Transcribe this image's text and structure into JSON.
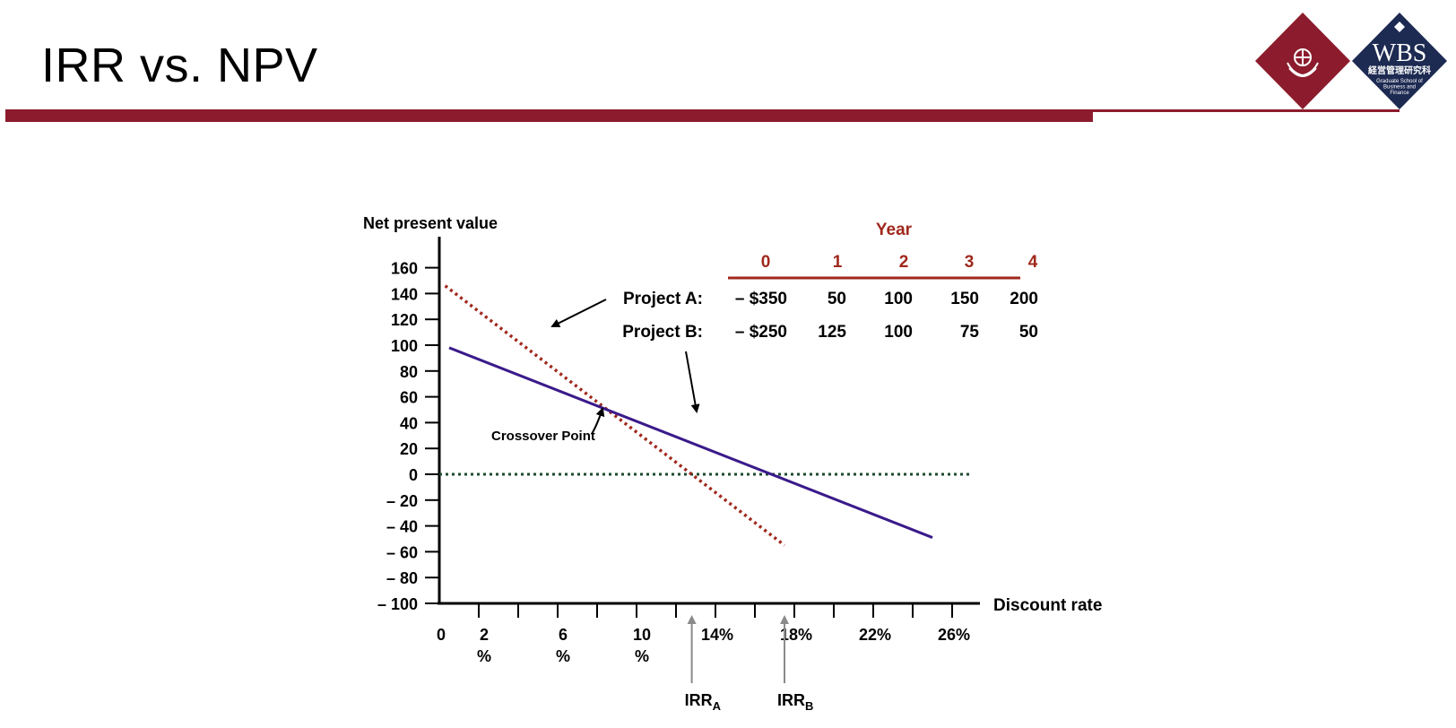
{
  "slide": {
    "title": "IRR vs. NPV"
  },
  "logo": {
    "brand": "WBS",
    "kanji": "経営管理研究科",
    "subtitle": [
      "Graduate School of",
      "Business and",
      "Finance"
    ]
  },
  "colors": {
    "brand": "#8c1c2d",
    "project_a": "#a0281c",
    "project_b": "#3a1a8a",
    "zero_line": "#1d4a2e",
    "arrow_gray": "#8a8a8a",
    "year_red": "#a0281c"
  },
  "chart_data": {
    "type": "line",
    "title": "",
    "ylabel": "Net present value",
    "xlabel": "Discount rate",
    "ylim": [
      -100,
      160
    ],
    "xlim": [
      0,
      27
    ],
    "y_ticks": [
      {
        "v": 160,
        "label": "160"
      },
      {
        "v": 140,
        "label": "140"
      },
      {
        "v": 120,
        "label": "120"
      },
      {
        "v": 100,
        "label": "100"
      },
      {
        "v": 80,
        "label": "80"
      },
      {
        "v": 60,
        "label": "60"
      },
      {
        "v": 40,
        "label": "40"
      },
      {
        "v": 20,
        "label": "20"
      },
      {
        "v": 0,
        "label": "0"
      },
      {
        "v": -20,
        "label": "– 20"
      },
      {
        "v": -40,
        "label": "– 40"
      },
      {
        "v": -60,
        "label": "– 60"
      },
      {
        "v": -80,
        "label": "– 80"
      },
      {
        "v": -100,
        "label": "– 100"
      }
    ],
    "x_tick_marks": [
      2,
      4,
      6,
      8,
      10,
      12,
      14,
      16,
      18,
      20,
      22,
      24,
      26
    ],
    "x_tick_labels": [
      {
        "v": 0,
        "lines": [
          "0"
        ]
      },
      {
        "v": 2,
        "lines": [
          "2",
          "%"
        ]
      },
      {
        "v": 6,
        "lines": [
          "6",
          "%"
        ]
      },
      {
        "v": 10,
        "lines": [
          "10",
          "%"
        ]
      },
      {
        "v": 14,
        "lines": [
          "14%"
        ]
      },
      {
        "v": 18,
        "lines": [
          "18%"
        ]
      },
      {
        "v": 22,
        "lines": [
          "22%"
        ]
      },
      {
        "v": 26,
        "lines": [
          "26%"
        ]
      }
    ],
    "series": [
      {
        "name": "Project A",
        "style": "dotted",
        "x": [
          0.3,
          17.5
        ],
        "y": [
          146,
          -55
        ]
      },
      {
        "name": "Project B",
        "style": "solid",
        "x": [
          0.5,
          25
        ],
        "y": [
          98,
          -49
        ]
      }
    ],
    "zero_line": {
      "y": 0,
      "x": [
        0,
        27
      ],
      "style": "dotted"
    },
    "crossover": {
      "label": "Crossover Point",
      "x": 8.5,
      "y": 48
    },
    "irr_markers": [
      {
        "main": "IRR",
        "sub": "A",
        "x": 12.8
      },
      {
        "main": "IRR",
        "sub": "B",
        "x": 17.5
      }
    ]
  },
  "cashflow_table": {
    "header": "Year",
    "years": [
      "0",
      "1",
      "2",
      "3",
      "4"
    ],
    "rows": [
      {
        "label": "Project A:",
        "values": [
          "– $350",
          "50",
          "100",
          "150",
          "200"
        ]
      },
      {
        "label": "Project B:",
        "values": [
          "– $250",
          "125",
          "100",
          "75",
          "50"
        ]
      }
    ]
  }
}
